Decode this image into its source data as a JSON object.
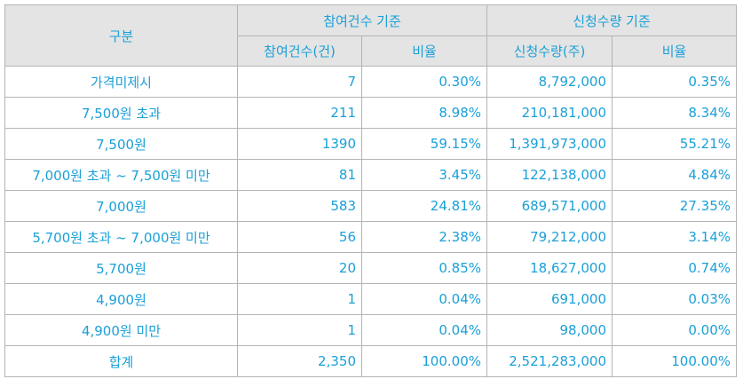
{
  "headers": {
    "category": "구분",
    "participation_group": "참여건수 기준",
    "application_group": "신청수량 기준",
    "participation_count": "참여건수(건)",
    "participation_ratio": "비율",
    "application_qty": "신청수량(주)",
    "application_ratio": "비율"
  },
  "rows": [
    {
      "label": "가격미제시",
      "count": "7",
      "count_ratio": "0.30%",
      "qty": "8,792,000",
      "qty_ratio": "0.35%"
    },
    {
      "label": "7,500원 초과",
      "count": "211",
      "count_ratio": "8.98%",
      "qty": "210,181,000",
      "qty_ratio": "8.34%"
    },
    {
      "label": "7,500원",
      "count": "1390",
      "count_ratio": "59.15%",
      "qty": "1,391,973,000",
      "qty_ratio": "55.21%"
    },
    {
      "label": "7,000원 초과 ~ 7,500원 미만",
      "count": "81",
      "count_ratio": "3.45%",
      "qty": "122,138,000",
      "qty_ratio": "4.84%"
    },
    {
      "label": "7,000원",
      "count": "583",
      "count_ratio": "24.81%",
      "qty": "689,571,000",
      "qty_ratio": "27.35%"
    },
    {
      "label": "5,700원 초과 ~ 7,000원 미만",
      "count": "56",
      "count_ratio": "2.38%",
      "qty": "79,212,000",
      "qty_ratio": "3.14%"
    },
    {
      "label": "5,700원",
      "count": "20",
      "count_ratio": "0.85%",
      "qty": "18,627,000",
      "qty_ratio": "0.74%"
    },
    {
      "label": "4,900원",
      "count": "1",
      "count_ratio": "0.04%",
      "qty": "691,000",
      "qty_ratio": "0.03%"
    },
    {
      "label": "4,900원 미만",
      "count": "1",
      "count_ratio": "0.04%",
      "qty": "98,000",
      "qty_ratio": "0.00%"
    },
    {
      "label": "합계",
      "count": "2,350",
      "count_ratio": "100.00%",
      "qty": "2,521,283,000",
      "qty_ratio": "100.00%"
    }
  ],
  "colors": {
    "text": "#1aa0d8",
    "header_bg": "#e4e4e4",
    "border": "#b4b4b4"
  }
}
